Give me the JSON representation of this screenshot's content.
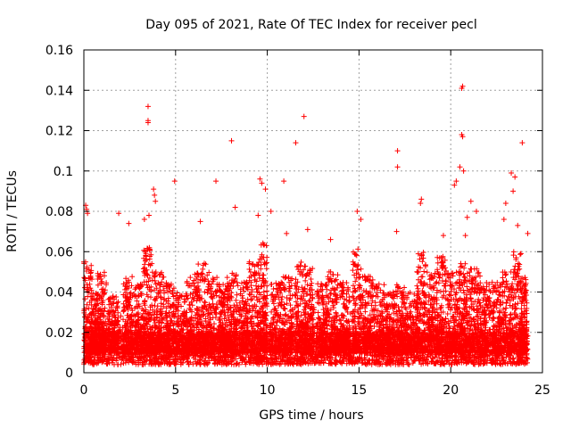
{
  "chart_data": {
    "type": "scatter",
    "title": "Day 095 of 2021, Rate Of TEC Index for receiver pecl",
    "xlabel": "GPS time / hours",
    "ylabel": "ROTI / TECUs",
    "xlim": [
      0,
      25
    ],
    "ylim": [
      0,
      0.16
    ],
    "x_ticks": [
      0,
      5,
      10,
      15,
      20,
      25
    ],
    "x_tick_labels": [
      "0",
      "5",
      "10",
      "15",
      "20",
      "25"
    ],
    "y_ticks": [
      0,
      0.02,
      0.04,
      0.06,
      0.08,
      0.1,
      0.12,
      0.14,
      0.16
    ],
    "y_tick_labels": [
      "0",
      "0.02",
      "0.04",
      "0.06",
      "0.08",
      "0.1",
      "0.12",
      "0.14",
      "0.16"
    ],
    "grid": true,
    "marker": "+",
    "color": "#ff0000",
    "series": [
      {
        "name": "ROTI",
        "notable_points": [
          {
            "x": 3.5,
            "y": 0.132
          },
          {
            "x": 3.5,
            "y": 0.125
          },
          {
            "x": 3.5,
            "y": 0.124
          },
          {
            "x": 20.65,
            "y": 0.142
          },
          {
            "x": 20.6,
            "y": 0.141
          },
          {
            "x": 20.6,
            "y": 0.118
          },
          {
            "x": 20.65,
            "y": 0.117
          },
          {
            "x": 12.0,
            "y": 0.127
          },
          {
            "x": 11.55,
            "y": 0.114
          },
          {
            "x": 23.9,
            "y": 0.114
          },
          {
            "x": 8.05,
            "y": 0.115
          },
          {
            "x": 17.1,
            "y": 0.11
          },
          {
            "x": 17.1,
            "y": 0.102
          },
          {
            "x": 20.5,
            "y": 0.102
          },
          {
            "x": 20.7,
            "y": 0.1
          },
          {
            "x": 23.3,
            "y": 0.099
          },
          {
            "x": 23.5,
            "y": 0.097
          },
          {
            "x": 20.3,
            "y": 0.095
          },
          {
            "x": 20.2,
            "y": 0.093
          },
          {
            "x": 4.95,
            "y": 0.095
          },
          {
            "x": 7.2,
            "y": 0.095
          },
          {
            "x": 10.9,
            "y": 0.095
          },
          {
            "x": 9.6,
            "y": 0.096
          },
          {
            "x": 9.7,
            "y": 0.094
          },
          {
            "x": 9.9,
            "y": 0.091
          },
          {
            "x": 23.4,
            "y": 0.09
          },
          {
            "x": 3.8,
            "y": 0.091
          },
          {
            "x": 3.85,
            "y": 0.088
          },
          {
            "x": 3.9,
            "y": 0.085
          },
          {
            "x": 18.4,
            "y": 0.086
          },
          {
            "x": 18.35,
            "y": 0.084
          },
          {
            "x": 21.1,
            "y": 0.085
          },
          {
            "x": 20.9,
            "y": 0.077
          },
          {
            "x": 20.8,
            "y": 0.068
          },
          {
            "x": 21.4,
            "y": 0.08
          },
          {
            "x": 23.0,
            "y": 0.084
          },
          {
            "x": 0.1,
            "y": 0.083
          },
          {
            "x": 0.15,
            "y": 0.081
          },
          {
            "x": 0.2,
            "y": 0.079
          },
          {
            "x": 1.9,
            "y": 0.079
          },
          {
            "x": 8.25,
            "y": 0.082
          },
          {
            "x": 14.9,
            "y": 0.08
          },
          {
            "x": 15.1,
            "y": 0.076
          },
          {
            "x": 17.05,
            "y": 0.07
          },
          {
            "x": 10.2,
            "y": 0.08
          },
          {
            "x": 9.5,
            "y": 0.078
          },
          {
            "x": 3.3,
            "y": 0.076
          },
          {
            "x": 3.55,
            "y": 0.078
          },
          {
            "x": 22.9,
            "y": 0.076
          },
          {
            "x": 23.65,
            "y": 0.073
          },
          {
            "x": 24.2,
            "y": 0.069
          },
          {
            "x": 6.35,
            "y": 0.075
          },
          {
            "x": 2.45,
            "y": 0.074
          },
          {
            "x": 11.05,
            "y": 0.069
          },
          {
            "x": 12.2,
            "y": 0.071
          },
          {
            "x": 19.6,
            "y": 0.068
          },
          {
            "x": 13.45,
            "y": 0.066
          }
        ],
        "note": "Dense noise floor of roughly 0.004-0.03 TECUs across 0-24 h with frequent bursts up to ~0.06-0.08 TECUs"
      }
    ]
  }
}
